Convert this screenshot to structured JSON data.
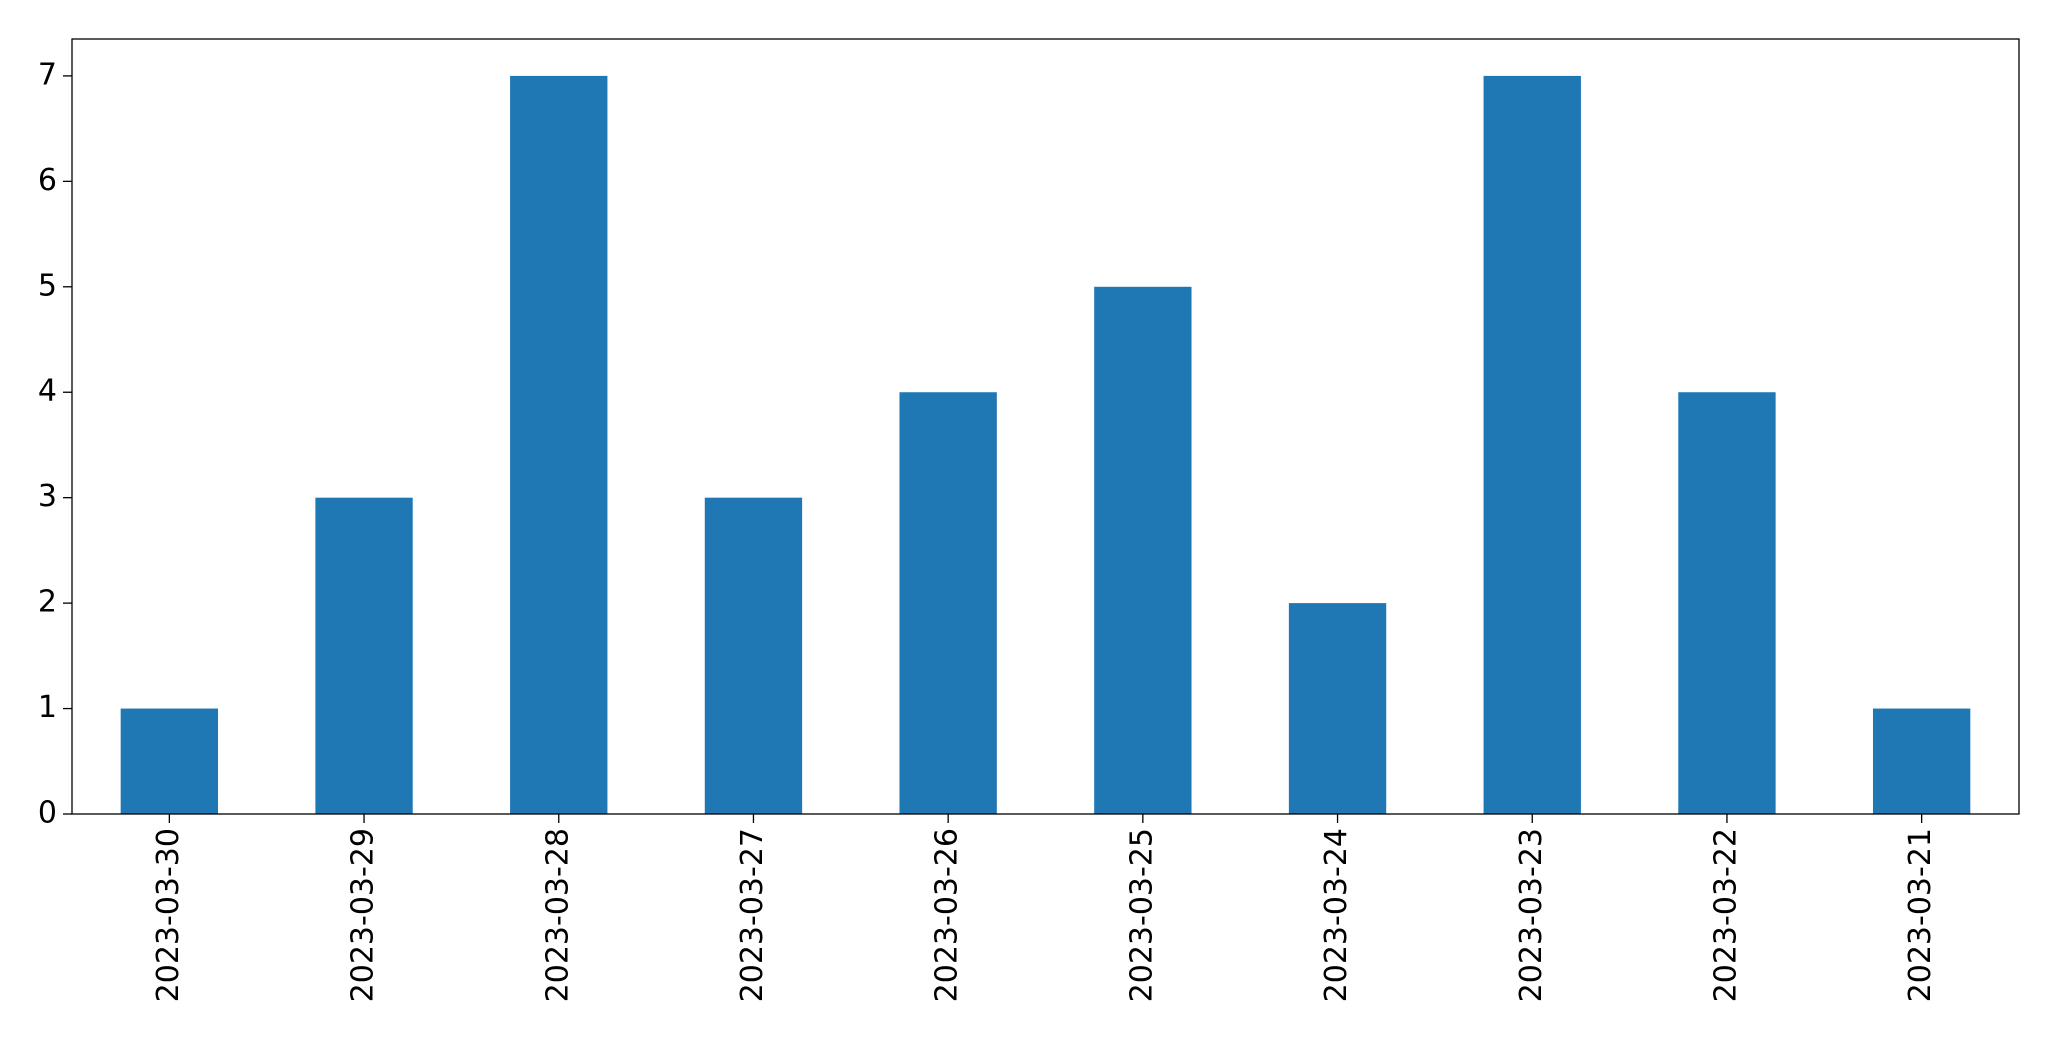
{
  "chart_data": {
    "type": "bar",
    "categories": [
      "2023-03-30",
      "2023-03-29",
      "2023-03-28",
      "2023-03-27",
      "2023-03-26",
      "2023-03-25",
      "2023-03-24",
      "2023-03-23",
      "2023-03-22",
      "2023-03-21"
    ],
    "values": [
      1,
      3,
      7,
      3,
      4,
      5,
      2,
      7,
      4,
      1
    ],
    "color": "#1f77b4",
    "ylim": [
      0,
      7.35
    ],
    "yticks": [
      0,
      1,
      2,
      3,
      4,
      5,
      6,
      7
    ],
    "grid": false
  }
}
